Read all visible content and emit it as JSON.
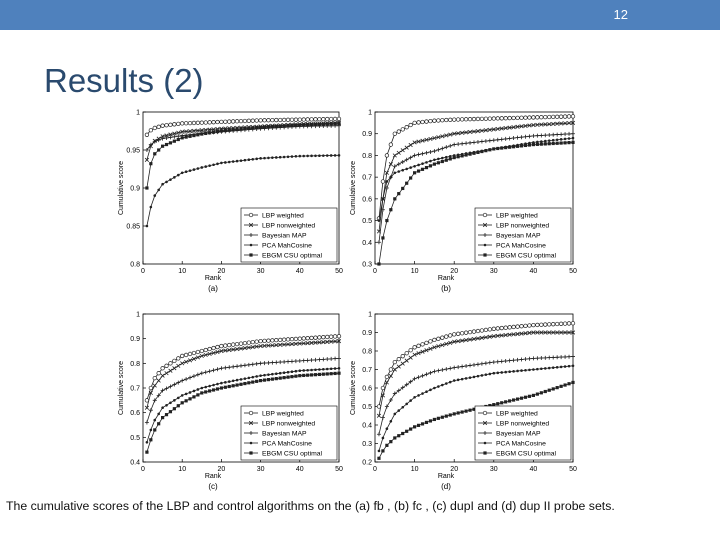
{
  "slide": {
    "number": "12",
    "title": "Results (2)",
    "caption": "The cumulative scores of the LBP and control algorithms on the (a) fb , (b) fc , (c) dupI and (d) dup II probe sets."
  },
  "colors": {
    "header_bar": "#4f81bd",
    "title": "#2a4a6e",
    "plot_line": "#222222"
  },
  "chart_data": [
    {
      "type": "line",
      "panel": "(a)",
      "xlabel": "Rank",
      "ylabel": "Cumulative score",
      "xlim": [
        0,
        50
      ],
      "ylim": [
        0.8,
        1
      ],
      "xticks": [
        "0",
        "10",
        "20",
        "30",
        "40",
        "50"
      ],
      "yticks": [
        "0.8",
        "0.85",
        "0.9",
        "0.95",
        "1"
      ],
      "legend_position": "bottom-right",
      "x": [
        1,
        2,
        3,
        5,
        10,
        15,
        20,
        30,
        40,
        50
      ],
      "series": [
        {
          "name": "LBP weighted",
          "marker": "circle",
          "values": [
            0.97,
            0.976,
            0.979,
            0.982,
            0.985,
            0.986,
            0.987,
            0.989,
            0.99,
            0.991
          ]
        },
        {
          "name": "LBP nonweighted",
          "marker": "x",
          "values": [
            0.937,
            0.955,
            0.962,
            0.968,
            0.974,
            0.976,
            0.978,
            0.981,
            0.984,
            0.986
          ]
        },
        {
          "name": "Bayesian MAP",
          "marker": "plus",
          "values": [
            0.95,
            0.957,
            0.961,
            0.965,
            0.969,
            0.972,
            0.974,
            0.978,
            0.981,
            0.982
          ]
        },
        {
          "name": "PCA MahCosine",
          "marker": "dot",
          "values": [
            0.85,
            0.875,
            0.89,
            0.905,
            0.92,
            0.927,
            0.933,
            0.939,
            0.942,
            0.943
          ]
        },
        {
          "name": "EBGM CSU optimal",
          "marker": "square",
          "values": [
            0.9,
            0.932,
            0.945,
            0.955,
            0.966,
            0.971,
            0.975,
            0.98,
            0.983,
            0.985
          ]
        }
      ]
    },
    {
      "type": "line",
      "panel": "(b)",
      "xlabel": "Rank",
      "ylabel": "Cumulative score",
      "xlim": [
        0,
        50
      ],
      "ylim": [
        0.3,
        1
      ],
      "xticks": [
        "0",
        "10",
        "20",
        "30",
        "40",
        "50"
      ],
      "yticks": [
        "0.3",
        "0.4",
        "0.5",
        "0.6",
        "0.7",
        "0.8",
        "0.9",
        "1"
      ],
      "legend_position": "bottom-right",
      "x": [
        1,
        2,
        3,
        5,
        10,
        15,
        20,
        30,
        40,
        50
      ],
      "series": [
        {
          "name": "LBP weighted",
          "marker": "circle",
          "values": [
            0.51,
            0.68,
            0.8,
            0.9,
            0.95,
            0.96,
            0.965,
            0.97,
            0.975,
            0.98
          ]
        },
        {
          "name": "LBP nonweighted",
          "marker": "x",
          "values": [
            0.45,
            0.6,
            0.72,
            0.8,
            0.86,
            0.88,
            0.9,
            0.92,
            0.94,
            0.95
          ]
        },
        {
          "name": "Bayesian MAP",
          "marker": "plus",
          "values": [
            0.4,
            0.55,
            0.65,
            0.75,
            0.8,
            0.82,
            0.85,
            0.87,
            0.89,
            0.9
          ]
        },
        {
          "name": "PCA MahCosine",
          "marker": "dot",
          "values": [
            0.5,
            0.6,
            0.68,
            0.72,
            0.75,
            0.78,
            0.8,
            0.83,
            0.86,
            0.88
          ]
        },
        {
          "name": "EBGM CSU optimal",
          "marker": "square",
          "values": [
            0.3,
            0.42,
            0.5,
            0.6,
            0.72,
            0.76,
            0.79,
            0.83,
            0.85,
            0.86
          ]
        }
      ]
    },
    {
      "type": "line",
      "panel": "(c)",
      "xlabel": "Rank",
      "ylabel": "Cumulative score",
      "xlim": [
        0,
        50
      ],
      "ylim": [
        0.4,
        1
      ],
      "xticks": [
        "0",
        "10",
        "20",
        "30",
        "40",
        "50"
      ],
      "yticks": [
        "0.4",
        "0.5",
        "0.6",
        "0.7",
        "0.8",
        "0.9",
        "1"
      ],
      "legend_position": "bottom-right",
      "x": [
        1,
        2,
        3,
        5,
        10,
        15,
        20,
        30,
        40,
        50
      ],
      "series": [
        {
          "name": "LBP weighted",
          "marker": "circle",
          "values": [
            0.65,
            0.7,
            0.74,
            0.78,
            0.83,
            0.85,
            0.87,
            0.89,
            0.9,
            0.91
          ]
        },
        {
          "name": "LBP nonweighted",
          "marker": "x",
          "values": [
            0.62,
            0.68,
            0.71,
            0.75,
            0.8,
            0.83,
            0.85,
            0.87,
            0.88,
            0.89
          ]
        },
        {
          "name": "Bayesian MAP",
          "marker": "plus",
          "values": [
            0.56,
            0.61,
            0.65,
            0.69,
            0.73,
            0.76,
            0.78,
            0.8,
            0.81,
            0.82
          ]
        },
        {
          "name": "PCA MahCosine",
          "marker": "dot",
          "values": [
            0.48,
            0.53,
            0.57,
            0.62,
            0.67,
            0.7,
            0.72,
            0.75,
            0.77,
            0.78
          ]
        },
        {
          "name": "EBGM CSU optimal",
          "marker": "square",
          "values": [
            0.44,
            0.49,
            0.53,
            0.58,
            0.64,
            0.68,
            0.7,
            0.73,
            0.75,
            0.76
          ]
        }
      ]
    },
    {
      "type": "line",
      "panel": "(d)",
      "xlabel": "Rank",
      "ylabel": "Cumulative score",
      "xlim": [
        0,
        50
      ],
      "ylim": [
        0.2,
        1
      ],
      "xticks": [
        "0",
        "10",
        "20",
        "30",
        "40",
        "50"
      ],
      "yticks": [
        "0.2",
        "0.3",
        "0.4",
        "0.5",
        "0.6",
        "0.7",
        "0.8",
        "0.9",
        "1"
      ],
      "legend_position": "bottom-right",
      "x": [
        1,
        2,
        3,
        5,
        10,
        15,
        20,
        30,
        40,
        50
      ],
      "series": [
        {
          "name": "LBP weighted",
          "marker": "circle",
          "values": [
            0.5,
            0.6,
            0.66,
            0.74,
            0.82,
            0.86,
            0.89,
            0.92,
            0.94,
            0.95
          ]
        },
        {
          "name": "LBP nonweighted",
          "marker": "x",
          "values": [
            0.45,
            0.56,
            0.63,
            0.7,
            0.78,
            0.82,
            0.85,
            0.88,
            0.9,
            0.9
          ]
        },
        {
          "name": "Bayesian MAP",
          "marker": "plus",
          "values": [
            0.35,
            0.44,
            0.5,
            0.57,
            0.65,
            0.69,
            0.71,
            0.74,
            0.76,
            0.77
          ]
        },
        {
          "name": "PCA MahCosine",
          "marker": "dot",
          "values": [
            0.26,
            0.33,
            0.38,
            0.46,
            0.55,
            0.6,
            0.64,
            0.68,
            0.7,
            0.72
          ]
        },
        {
          "name": "EBGM CSU optimal",
          "marker": "square",
          "values": [
            0.22,
            0.26,
            0.29,
            0.33,
            0.39,
            0.43,
            0.46,
            0.51,
            0.56,
            0.63
          ]
        }
      ]
    }
  ]
}
